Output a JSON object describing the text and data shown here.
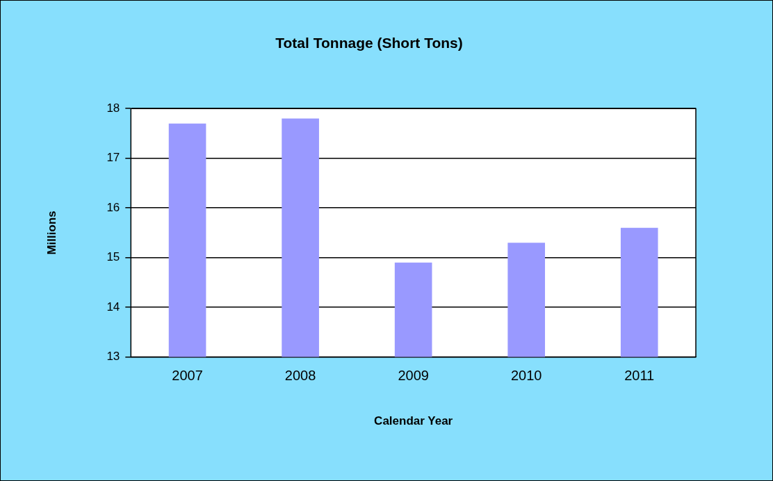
{
  "chart_data": {
    "type": "bar",
    "title": "Total Tonnage (Short Tons)",
    "xlabel": "Calendar Year",
    "ylabel": "Millions",
    "categories": [
      "2007",
      "2008",
      "2009",
      "2010",
      "2011"
    ],
    "values": [
      17.7,
      17.8,
      14.9,
      15.3,
      15.6
    ],
    "color": "#9999ff",
    "ylim": [
      13,
      18
    ],
    "yticks": [
      13,
      14,
      15,
      16,
      17,
      18
    ],
    "grid": "y",
    "legend": false
  }
}
